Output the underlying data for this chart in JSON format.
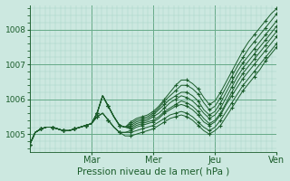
{
  "xlabel": "Pression niveau de la mer( hPa )",
  "bg_color": "#cce8e0",
  "line_color": "#1a5c2a",
  "grid_minor_color": "#aad4c8",
  "grid_major_color": "#66aa88",
  "ylim": [
    1004.5,
    1008.7
  ],
  "xlim": [
    0,
    120
  ],
  "yticks": [
    1005,
    1006,
    1007,
    1008
  ],
  "xtick_positions": [
    30,
    60,
    90,
    120
  ],
  "xtick_labels": [
    "Mar",
    "Mer",
    "Jeu",
    "Ven"
  ],
  "series": [
    [
      1004.7,
      1005.05,
      1005.15,
      1005.2,
      1005.2,
      1005.15,
      1005.1,
      1005.1,
      1005.15,
      1005.2,
      1005.25,
      1005.3,
      1005.6,
      1006.1,
      1005.8,
      1005.5,
      1005.25,
      1005.2,
      1005.35,
      1005.45,
      1005.5,
      1005.55,
      1005.65,
      1005.8,
      1006.0,
      1006.2,
      1006.4,
      1006.55,
      1006.55,
      1006.45,
      1006.3,
      1006.05,
      1005.85,
      1005.95,
      1006.2,
      1006.5,
      1006.8,
      1007.1,
      1007.4,
      1007.65,
      1007.85,
      1008.05,
      1008.25,
      1008.45,
      1008.6
    ],
    [
      1004.7,
      1005.05,
      1005.15,
      1005.2,
      1005.2,
      1005.15,
      1005.1,
      1005.1,
      1005.15,
      1005.2,
      1005.25,
      1005.3,
      1005.6,
      1006.1,
      1005.8,
      1005.5,
      1005.25,
      1005.2,
      1005.3,
      1005.4,
      1005.45,
      1005.5,
      1005.6,
      1005.75,
      1005.95,
      1006.1,
      1006.25,
      1006.4,
      1006.4,
      1006.3,
      1006.15,
      1005.9,
      1005.7,
      1005.8,
      1006.05,
      1006.35,
      1006.65,
      1006.95,
      1007.2,
      1007.45,
      1007.65,
      1007.85,
      1008.05,
      1008.25,
      1008.45
    ],
    [
      1004.7,
      1005.05,
      1005.15,
      1005.2,
      1005.2,
      1005.15,
      1005.1,
      1005.1,
      1005.15,
      1005.2,
      1005.25,
      1005.3,
      1005.6,
      1006.1,
      1005.8,
      1005.5,
      1005.25,
      1005.2,
      1005.25,
      1005.35,
      1005.4,
      1005.45,
      1005.55,
      1005.7,
      1005.85,
      1006.0,
      1006.1,
      1006.2,
      1006.2,
      1006.1,
      1005.95,
      1005.7,
      1005.55,
      1005.65,
      1005.9,
      1006.2,
      1006.5,
      1006.8,
      1007.05,
      1007.25,
      1007.45,
      1007.65,
      1007.85,
      1008.05,
      1008.25
    ],
    [
      1004.7,
      1005.05,
      1005.15,
      1005.2,
      1005.2,
      1005.15,
      1005.1,
      1005.1,
      1005.15,
      1005.2,
      1005.25,
      1005.3,
      1005.6,
      1006.1,
      1005.8,
      1005.5,
      1005.25,
      1005.2,
      1005.2,
      1005.3,
      1005.35,
      1005.4,
      1005.5,
      1005.6,
      1005.75,
      1005.9,
      1006.0,
      1006.1,
      1006.05,
      1005.95,
      1005.8,
      1005.6,
      1005.45,
      1005.55,
      1005.75,
      1006.05,
      1006.35,
      1006.65,
      1006.9,
      1007.1,
      1007.3,
      1007.5,
      1007.7,
      1007.9,
      1008.1
    ],
    [
      1004.7,
      1005.05,
      1005.15,
      1005.2,
      1005.2,
      1005.15,
      1005.1,
      1005.1,
      1005.15,
      1005.2,
      1005.25,
      1005.3,
      1005.6,
      1006.1,
      1005.8,
      1005.5,
      1005.25,
      1005.2,
      1005.15,
      1005.25,
      1005.3,
      1005.35,
      1005.4,
      1005.5,
      1005.65,
      1005.75,
      1005.85,
      1005.95,
      1005.9,
      1005.8,
      1005.65,
      1005.45,
      1005.3,
      1005.4,
      1005.6,
      1005.9,
      1006.2,
      1006.5,
      1006.75,
      1006.95,
      1007.15,
      1007.35,
      1007.55,
      1007.75,
      1007.95
    ],
    [
      1004.7,
      1005.05,
      1005.15,
      1005.2,
      1005.2,
      1005.15,
      1005.1,
      1005.1,
      1005.15,
      1005.2,
      1005.25,
      1005.3,
      1005.5,
      1005.6,
      1005.4,
      1005.2,
      1005.05,
      1005.05,
      1005.1,
      1005.2,
      1005.25,
      1005.3,
      1005.35,
      1005.45,
      1005.6,
      1005.7,
      1005.8,
      1005.85,
      1005.8,
      1005.7,
      1005.55,
      1005.35,
      1005.25,
      1005.35,
      1005.55,
      1005.85,
      1006.1,
      1006.35,
      1006.6,
      1006.8,
      1007.0,
      1007.2,
      1007.4,
      1007.6,
      1007.8
    ],
    [
      1004.7,
      1005.05,
      1005.15,
      1005.2,
      1005.2,
      1005.15,
      1005.1,
      1005.1,
      1005.15,
      1005.2,
      1005.25,
      1005.3,
      1005.5,
      1005.6,
      1005.4,
      1005.2,
      1005.05,
      1005.05,
      1005.05,
      1005.1,
      1005.15,
      1005.2,
      1005.25,
      1005.35,
      1005.45,
      1005.55,
      1005.6,
      1005.65,
      1005.6,
      1005.5,
      1005.35,
      1005.2,
      1005.1,
      1005.2,
      1005.4,
      1005.65,
      1005.9,
      1006.15,
      1006.4,
      1006.6,
      1006.8,
      1007.0,
      1007.2,
      1007.4,
      1007.6
    ],
    [
      1004.7,
      1005.05,
      1005.15,
      1005.2,
      1005.2,
      1005.15,
      1005.1,
      1005.1,
      1005.15,
      1005.2,
      1005.25,
      1005.3,
      1005.5,
      1005.6,
      1005.4,
      1005.2,
      1005.05,
      1004.95,
      1004.95,
      1005.0,
      1005.05,
      1005.1,
      1005.15,
      1005.25,
      1005.35,
      1005.45,
      1005.5,
      1005.55,
      1005.5,
      1005.4,
      1005.25,
      1005.1,
      1005.0,
      1005.1,
      1005.25,
      1005.5,
      1005.75,
      1006.0,
      1006.25,
      1006.45,
      1006.65,
      1006.85,
      1007.1,
      1007.3,
      1007.5
    ]
  ]
}
